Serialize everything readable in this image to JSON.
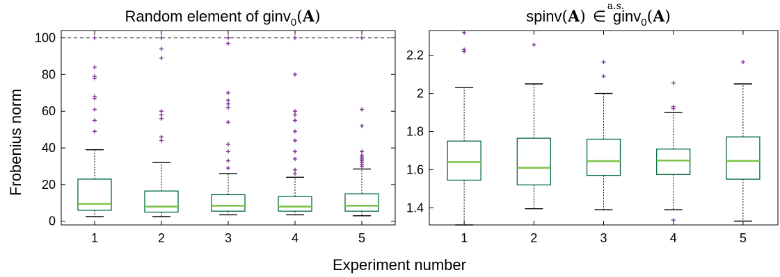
{
  "figure": {
    "ylabel": "Frobenius norm",
    "xlabel": "Experiment number"
  },
  "chart_data": [
    {
      "type": "box",
      "title_prefix": "Random element of ",
      "title_math_fn": "ginv",
      "title_math_sub": "0",
      "title_math_arg": "A",
      "categories": [
        "1",
        "2",
        "3",
        "4",
        "5"
      ],
      "ylim": [
        -2,
        104
      ],
      "yticks": [
        0,
        20,
        40,
        60,
        80,
        100
      ],
      "reference_line": 100,
      "colors": {
        "box": "#006a37",
        "median": "#7ec44a",
        "outlier": "#7b3294",
        "whisker": "#000000"
      },
      "boxes": [
        {
          "whislo": 2.5,
          "q1": 6,
          "med": 9.5,
          "q3": 23,
          "whishi": 39,
          "fliers": [
            49,
            55,
            61,
            67,
            68,
            78,
            79,
            84,
            100
          ]
        },
        {
          "whislo": 2.5,
          "q1": 5,
          "med": 8,
          "q3": 16.5,
          "whishi": 32,
          "fliers": [
            44,
            46,
            56,
            58,
            60,
            89,
            94,
            100
          ]
        },
        {
          "whislo": 3.5,
          "q1": 5.5,
          "med": 8.5,
          "q3": 14.5,
          "whishi": 26,
          "fliers": [
            29,
            33,
            38,
            42,
            54,
            62,
            64,
            66,
            70,
            97,
            100
          ]
        },
        {
          "whislo": 3.5,
          "q1": 5.5,
          "med": 8,
          "q3": 13.5,
          "whishi": 24,
          "fliers": [
            26,
            28,
            34,
            38,
            44,
            49,
            55,
            58,
            60,
            80,
            100
          ]
        },
        {
          "whislo": 3,
          "q1": 5.5,
          "med": 8.5,
          "q3": 15,
          "whishi": 28.5,
          "fliers": [
            30,
            31,
            32,
            33,
            34,
            35,
            36,
            38,
            52,
            61,
            100
          ]
        }
      ]
    },
    {
      "type": "box",
      "title_fn": "spinv",
      "title_math_arg": "A",
      "title_relation": "∈",
      "title_relation_over": "a.s.",
      "title_rhs_fn": "ginv",
      "title_rhs_sub": "0",
      "categories": [
        "1",
        "2",
        "3",
        "4",
        "5"
      ],
      "ylim": [
        1.31,
        2.33
      ],
      "yticks": [
        "1.4",
        "1.6",
        "1.8",
        "2",
        "2.2"
      ],
      "colors": {
        "box": "#006a37",
        "median": "#7ec44a",
        "outlier": "#7b3294",
        "whisker": "#000000"
      },
      "boxes": [
        {
          "whislo": 1.31,
          "q1": 1.545,
          "med": 1.64,
          "q3": 1.75,
          "whishi": 2.03,
          "fliers": [
            2.22,
            2.23,
            2.32
          ]
        },
        {
          "whislo": 1.395,
          "q1": 1.52,
          "med": 1.61,
          "q3": 1.765,
          "whishi": 2.05,
          "fliers": [
            2.255
          ]
        },
        {
          "whislo": 1.39,
          "q1": 1.57,
          "med": 1.645,
          "q3": 1.76,
          "whishi": 2.0,
          "fliers": [
            2.09,
            2.165
          ]
        },
        {
          "whislo": 1.39,
          "q1": 1.575,
          "med": 1.648,
          "q3": 1.708,
          "whishi": 1.9,
          "fliers": [
            1.335,
            1.92,
            1.93,
            2.055
          ]
        },
        {
          "whislo": 1.33,
          "q1": 1.55,
          "med": 1.646,
          "q3": 1.772,
          "whishi": 2.05,
          "fliers": [
            2.165
          ]
        }
      ]
    }
  ]
}
